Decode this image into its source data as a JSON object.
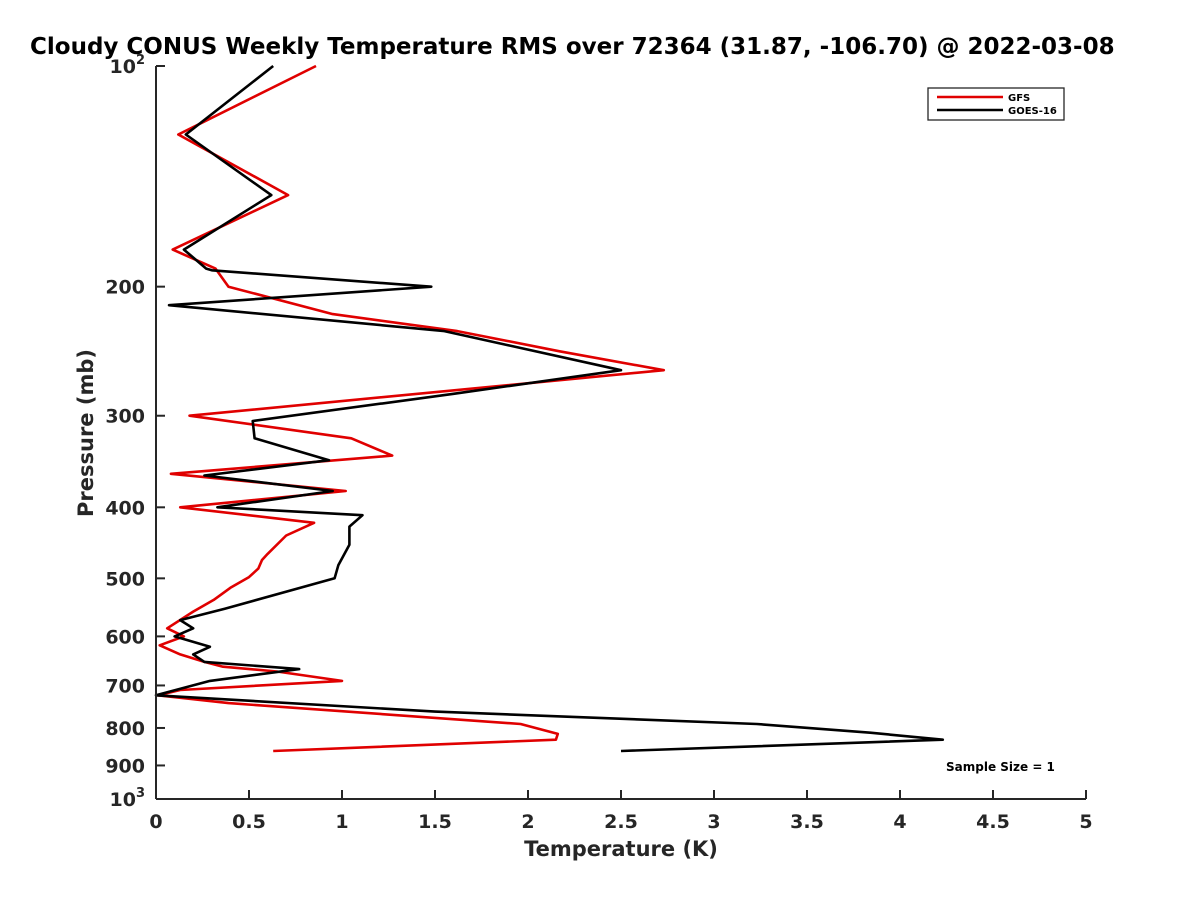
{
  "chart_data": {
    "type": "line",
    "title": "Cloudy CONUS Weekly Temperature RMS over 72364 (31.87, -106.70) @ 2022-03-08",
    "xlabel": "Temperature (K)",
    "ylabel": "Pressure (mb)",
    "xlim": [
      0,
      5
    ],
    "ylim": [
      100,
      1000
    ],
    "y_scale": "log",
    "y_reversed": true,
    "x_ticks": [
      0,
      0.5,
      1,
      1.5,
      2,
      2.5,
      3,
      3.5,
      4,
      4.5,
      5
    ],
    "x_tick_labels": [
      "0",
      "0.5",
      "1",
      "1.5",
      "2",
      "2.5",
      "3",
      "3.5",
      "4",
      "4.5",
      "5"
    ],
    "y_ticks": [
      {
        "value": 100,
        "base": "10",
        "exp": "2"
      },
      {
        "value": 200,
        "label": "200"
      },
      {
        "value": 300,
        "label": "300"
      },
      {
        "value": 400,
        "label": "400"
      },
      {
        "value": 500,
        "label": "500"
      },
      {
        "value": 600,
        "label": "600"
      },
      {
        "value": 700,
        "label": "700"
      },
      {
        "value": 800,
        "label": "800"
      },
      {
        "value": 900,
        "label": "900"
      },
      {
        "value": 1000,
        "base": "10",
        "exp": "3"
      }
    ],
    "grid": false,
    "legend_position": "top-right",
    "annotation": "Sample Size = 1",
    "series": [
      {
        "name": "GFS",
        "color": "#e00000",
        "points": [
          [
            0.86,
            100
          ],
          [
            0.12,
            124
          ],
          [
            0.71,
            150
          ],
          [
            0.09,
            178
          ],
          [
            0.32,
            189
          ],
          [
            0.39,
            200
          ],
          [
            0.95,
            218
          ],
          [
            1.62,
            230
          ],
          [
            2.17,
            245
          ],
          [
            2.73,
            260
          ],
          [
            0.18,
            300
          ],
          [
            1.05,
            322
          ],
          [
            1.27,
            340
          ],
          [
            0.08,
            360
          ],
          [
            1.02,
            380
          ],
          [
            0.13,
            400
          ],
          [
            0.85,
            420
          ],
          [
            0.7,
            437
          ],
          [
            0.6,
            463
          ],
          [
            0.57,
            472
          ],
          [
            0.55,
            485
          ],
          [
            0.5,
            498
          ],
          [
            0.4,
            515
          ],
          [
            0.31,
            535
          ],
          [
            0.2,
            555
          ],
          [
            0.06,
            585
          ],
          [
            0.15,
            600
          ],
          [
            0.02,
            617
          ],
          [
            0.13,
            635
          ],
          [
            0.26,
            650
          ],
          [
            0.36,
            660
          ],
          [
            0.65,
            670
          ],
          [
            1.0,
            690
          ],
          [
            0.13,
            710
          ],
          [
            0.01,
            722
          ],
          [
            0.39,
            740
          ],
          [
            1.96,
            790
          ],
          [
            2.16,
            815
          ],
          [
            2.15,
            830
          ],
          [
            0.63,
            860
          ]
        ]
      },
      {
        "name": "GOES-16",
        "color": "#000000",
        "points": [
          [
            0.63,
            100
          ],
          [
            0.16,
            124
          ],
          [
            0.62,
            150
          ],
          [
            0.15,
            178
          ],
          [
            0.27,
            189
          ],
          [
            0.3,
            190
          ],
          [
            1.48,
            200
          ],
          [
            0.07,
            212
          ],
          [
            1.55,
            230
          ],
          [
            2.5,
            260
          ],
          [
            1.6,
            280
          ],
          [
            0.52,
            305
          ],
          [
            0.53,
            322
          ],
          [
            0.93,
            345
          ],
          [
            0.26,
            362
          ],
          [
            0.95,
            380
          ],
          [
            0.33,
            400
          ],
          [
            1.11,
            410
          ],
          [
            1.04,
            425
          ],
          [
            1.04,
            450
          ],
          [
            0.98,
            480
          ],
          [
            0.96,
            500
          ],
          [
            0.37,
            550
          ],
          [
            0.13,
            570
          ],
          [
            0.2,
            585
          ],
          [
            0.1,
            600
          ],
          [
            0.29,
            620
          ],
          [
            0.2,
            635
          ],
          [
            0.26,
            650
          ],
          [
            0.77,
            665
          ],
          [
            0.29,
            690
          ],
          [
            0.0,
            722
          ],
          [
            1.5,
            760
          ],
          [
            3.23,
            790
          ],
          [
            3.84,
            812
          ],
          [
            4.23,
            830
          ],
          [
            2.5,
            860
          ]
        ]
      }
    ]
  }
}
